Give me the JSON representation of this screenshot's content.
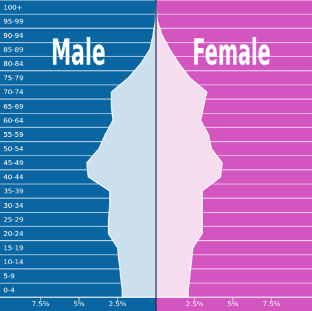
{
  "chart_data": {
    "type": "area",
    "chart_kind": "population-pyramid",
    "categories": [
      "0-4",
      "5-9",
      "10-14",
      "15-19",
      "20-24",
      "25-29",
      "30-34",
      "35-39",
      "40-44",
      "45-49",
      "50-54",
      "55-59",
      "60-64",
      "65-69",
      "70-74",
      "75-79",
      "80-84",
      "85-89",
      "90-94",
      "95-99",
      "100+"
    ],
    "series": [
      {
        "name": "Male",
        "values": [
          2.2,
          2.3,
          2.4,
          2.5,
          3.1,
          3.1,
          3.0,
          3.0,
          4.4,
          4.5,
          3.7,
          3.3,
          2.8,
          2.9,
          2.9,
          1.8,
          1.0,
          0.4,
          0.2,
          0.05,
          0.0
        ]
      },
      {
        "name": "Female",
        "values": [
          2.1,
          2.2,
          2.3,
          2.4,
          3.0,
          3.0,
          3.0,
          3.0,
          4.2,
          4.3,
          3.6,
          3.4,
          2.9,
          3.1,
          3.3,
          2.2,
          1.5,
          0.9,
          0.4,
          0.1,
          0.0
        ]
      }
    ],
    "xticks": {
      "left": [
        "7.5%",
        "5%",
        "2.5%"
      ],
      "right": [
        "2.5%",
        "5%",
        "7.5%"
      ]
    },
    "xlim": [
      0,
      10
    ],
    "colors": {
      "male_background": "#0a66a2",
      "female_background": "#d255c0",
      "male_fill": "#cbdfee",
      "female_fill": "#f6dcef",
      "grid": "#ffffff",
      "center_line": "#202040"
    }
  }
}
